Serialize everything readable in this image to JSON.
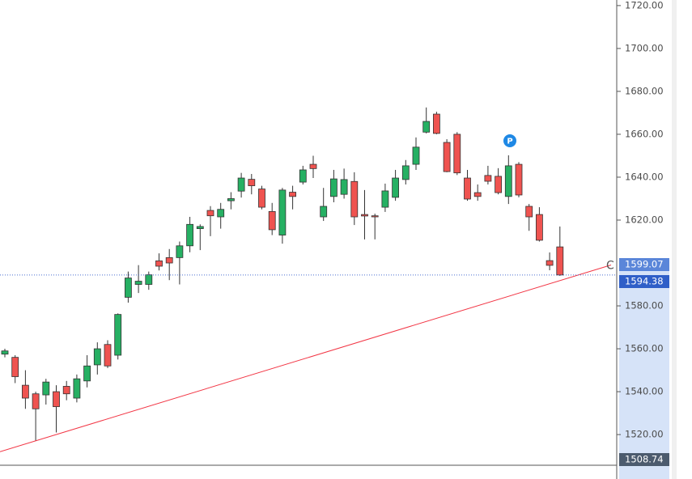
{
  "chart_data": {
    "type": "candlestick",
    "up_color": "#26b063",
    "down_color": "#ef5350",
    "open": [
      1557.5,
      1556,
      1543,
      1539,
      1538.5,
      1540,
      1542.5,
      1537,
      1545,
      1552.5,
      1562,
      1557,
      1584,
      1590,
      1590,
      1601,
      1602.5,
      1602.5,
      1608,
      1616,
      1624.5,
      1621.5,
      1629,
      1633.5,
      1639,
      1634.5,
      1624,
      1613,
      1633,
      1637.7,
      1646,
      1621.5,
      1631,
      1632,
      1638,
      1622.6,
      1622,
      1626,
      1630.6,
      1638.9,
      1646,
      1661,
      1669.4,
      1656.2,
      1660,
      1639.6,
      1632.8,
      1640.8,
      1640.4,
      1631,
      1646,
      1626.4,
      1622.6,
      1601.1,
      1607.5
    ],
    "high": [
      1560,
      1557,
      1550,
      1540,
      1546,
      1543,
      1545,
      1548,
      1557,
      1563,
      1564,
      1576.5,
      1596,
      1599,
      1596,
      1604.5,
      1606.5,
      1610,
      1621.5,
      1618,
      1626.5,
      1628,
      1633,
      1642,
      1641.5,
      1636,
      1628,
      1635,
      1636,
      1645.3,
      1650,
      1635,
      1643.4,
      1644,
      1642.3,
      1634,
      1623,
      1637,
      1643.4,
      1648,
      1658.5,
      1672.5,
      1670.5,
      1657.7,
      1661,
      1643.4,
      1636.6,
      1645.3,
      1644.2,
      1650.2,
      1647,
      1627.5,
      1626,
      1604.9,
      1617
    ],
    "low": [
      1556,
      1544,
      1532,
      1517,
      1534,
      1521,
      1536,
      1535,
      1542,
      1548,
      1551,
      1555,
      1581.5,
      1586,
      1587.5,
      1596.5,
      1592,
      1590,
      1605,
      1606,
      1612.5,
      1616,
      1625,
      1630.5,
      1632,
      1625,
      1613,
      1609,
      1625,
      1636.6,
      1639.6,
      1619.6,
      1628.3,
      1630,
      1617.7,
      1611,
      1611,
      1623.8,
      1629,
      1636.6,
      1643.4,
      1660.4,
      1660,
      1642.3,
      1641,
      1629,
      1629,
      1636.6,
      1632,
      1627.5,
      1630.6,
      1615,
      1610,
      1596.6,
      1594
    ],
    "close": [
      1559,
      1547,
      1537,
      1532,
      1544.5,
      1533,
      1539,
      1546,
      1552,
      1560,
      1552,
      1576,
      1593,
      1591.5,
      1594.5,
      1598.5,
      1600,
      1608,
      1618,
      1617,
      1622,
      1625,
      1630,
      1639.6,
      1636,
      1626,
      1615.5,
      1634,
      1631,
      1643.4,
      1644,
      1626.4,
      1639.2,
      1638.9,
      1621.5,
      1621.9,
      1621.5,
      1633.6,
      1639.6,
      1645.3,
      1654,
      1666,
      1660.4,
      1642.6,
      1642,
      1629.8,
      1631,
      1638.1,
      1632.8,
      1645.3,
      1631.7,
      1621.5,
      1610.6,
      1598.9,
      1594.4
    ],
    "trendline": {
      "color": "#f23645",
      "values": [
        1512,
        1599.07
      ]
    },
    "last_price": 1594.38,
    "cursor_price": 1508.74,
    "annotations": [
      "P",
      "C"
    ],
    "ylim": [
      1505.7,
      1722.6
    ],
    "yticks": [
      {
        "value": 1520,
        "label": "1520.00"
      },
      {
        "value": 1540,
        "label": "1540.00"
      },
      {
        "value": 1560,
        "label": "1560.00"
      },
      {
        "value": 1580,
        "label": "1580.00"
      },
      {
        "value": 1620,
        "label": "1620.00"
      },
      {
        "value": 1640,
        "label": "1640.00"
      },
      {
        "value": 1660,
        "label": "1660.00"
      },
      {
        "value": 1680,
        "label": "1680.00"
      },
      {
        "value": 1700,
        "label": "1700.00"
      },
      {
        "value": 1720,
        "label": "1720.00"
      }
    ]
  }
}
